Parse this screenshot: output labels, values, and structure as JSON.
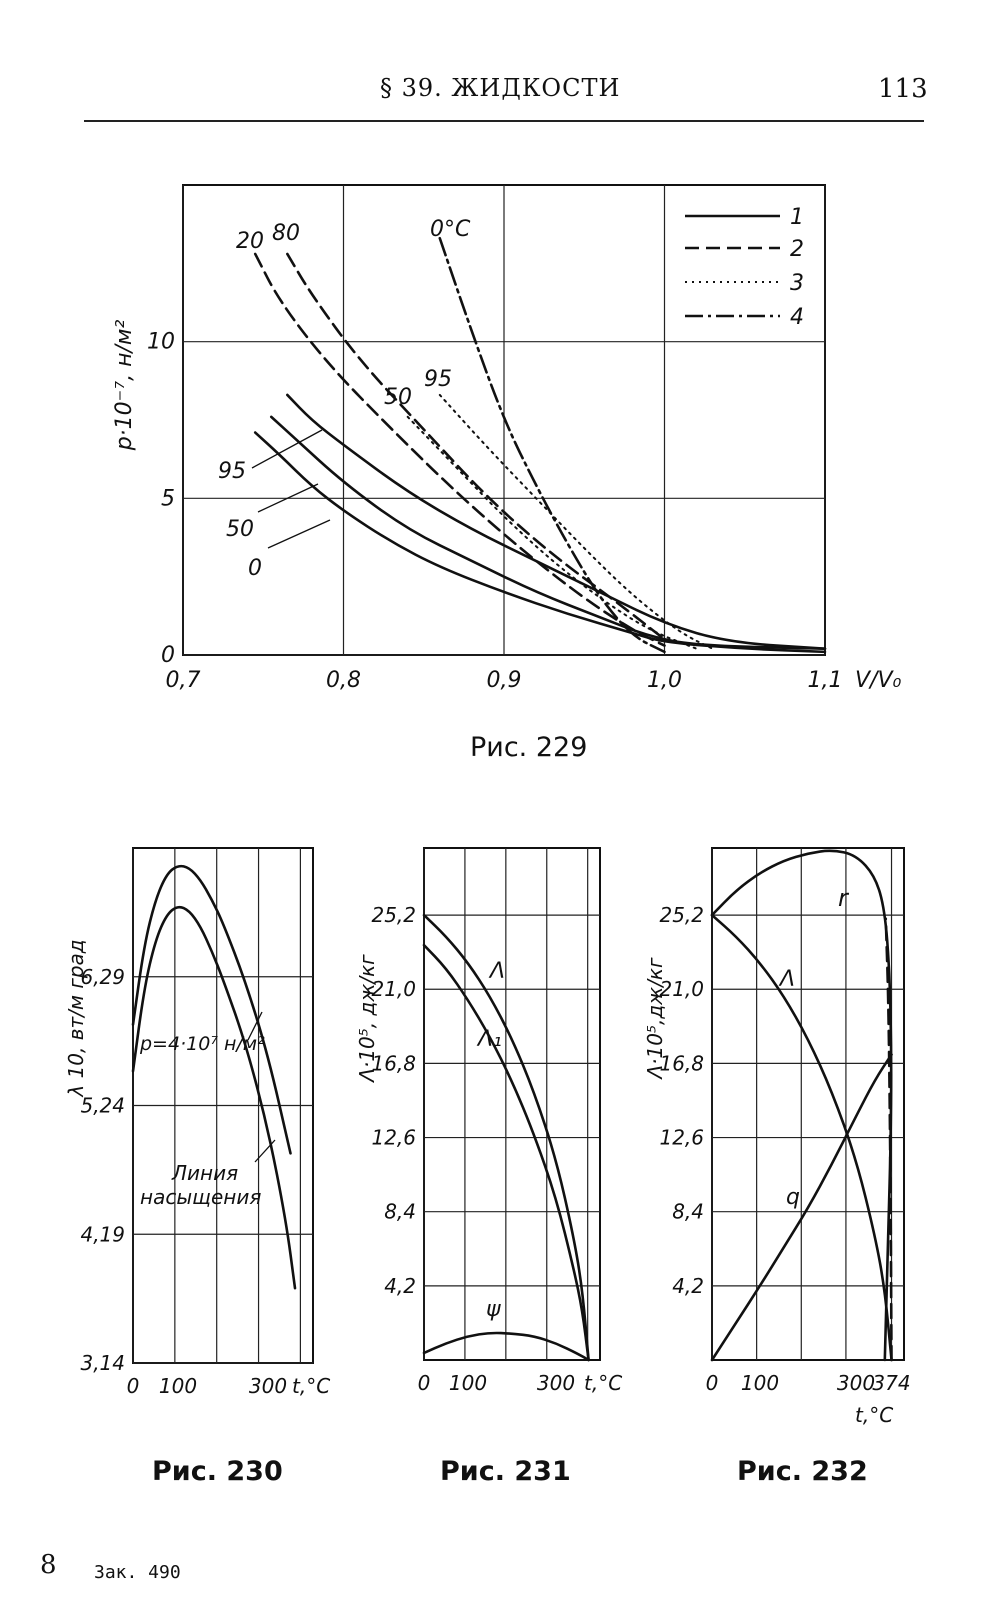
{
  "header": {
    "title": "§ 39. ЖИДКОСТИ",
    "page_number": "113"
  },
  "footer": {
    "sheet": "8",
    "order": "Зак. 490"
  },
  "chart_data": [
    {
      "id": "fig229",
      "caption": "Рис. 229",
      "type": "line",
      "xlabel": "V/V₀",
      "ylabel": "p·10⁻⁷, н/м²",
      "xlim": [
        0.7,
        1.1
      ],
      "ylim": [
        0,
        15
      ],
      "xticks": [
        "0,7",
        "0,8",
        "0,9",
        "1,0",
        "1,1"
      ],
      "yticks": [
        "0",
        "5",
        "10"
      ],
      "grid": true,
      "legend": {
        "position": "top-right",
        "entries": [
          "1",
          "2",
          "3",
          "4"
        ]
      },
      "series": [
        {
          "name": "0",
          "style": 1,
          "label": "0",
          "x": [
            0.745,
            0.76,
            0.78,
            0.8,
            0.83,
            0.86,
            0.9,
            0.94,
            0.98,
            1.0,
            1.05,
            1.1
          ],
          "y": [
            7.1,
            6.4,
            5.4,
            4.6,
            3.6,
            2.8,
            2.0,
            1.3,
            0.7,
            0.4,
            0.2,
            0.1
          ]
        },
        {
          "name": "50",
          "style": 1,
          "label": "50",
          "x": [
            0.755,
            0.77,
            0.8,
            0.84,
            0.88,
            0.92,
            0.96,
            0.99,
            1.02,
            1.1
          ],
          "y": [
            7.6,
            6.9,
            5.5,
            4.0,
            3.0,
            2.0,
            1.2,
            0.6,
            0.3,
            0.2
          ]
        },
        {
          "name": "95",
          "style": 1,
          "label": "95",
          "x": [
            0.765,
            0.78,
            0.8,
            0.84,
            0.88,
            0.92,
            0.96,
            1.0,
            1.04,
            1.1
          ],
          "y": [
            8.3,
            7.5,
            6.7,
            5.2,
            4.0,
            3.0,
            2.0,
            1.0,
            0.4,
            0.2
          ]
        },
        {
          "name": "20",
          "style": 2,
          "label": "20",
          "x": [
            0.745,
            0.76,
            0.79,
            0.83,
            0.87,
            0.91,
            0.95,
            0.98,
            1.0
          ],
          "y": [
            12.8,
            11.3,
            9.3,
            7.2,
            5.2,
            3.4,
            1.8,
            0.8,
            0.3
          ]
        },
        {
          "name": "80",
          "style": 2,
          "label": "80",
          "x": [
            0.765,
            0.78,
            0.81,
            0.85,
            0.89,
            0.93,
            0.97,
            1.0
          ],
          "y": [
            12.8,
            11.5,
            9.4,
            7.2,
            5.0,
            3.2,
            1.7,
            0.5
          ]
        },
        {
          "name": "50",
          "style": 3,
          "label": "50",
          "x": [
            0.84,
            0.87,
            0.9,
            0.93,
            0.96,
            0.99,
            1.02
          ],
          "y": [
            7.6,
            6.0,
            4.4,
            3.0,
            1.8,
            0.8,
            0.2
          ]
        },
        {
          "name": "95",
          "style": 3,
          "label": "95",
          "x": [
            0.86,
            0.89,
            0.92,
            0.95,
            0.98,
            1.01,
            1.03
          ],
          "y": [
            8.3,
            6.6,
            5.0,
            3.4,
            1.9,
            0.7,
            0.2
          ]
        },
        {
          "name": "0°C",
          "style": 4,
          "label": "0°C",
          "x": [
            0.86,
            0.88,
            0.9,
            0.92,
            0.94,
            0.96,
            0.98,
            1.0
          ],
          "y": [
            13.3,
            10.3,
            7.5,
            5.4,
            3.5,
            1.8,
            0.6,
            0.1
          ]
        }
      ]
    },
    {
      "id": "fig230",
      "caption": "Рис. 230",
      "type": "line",
      "xlabel": "t,°C",
      "ylabel": "λ 10, вт/м град",
      "xlim": [
        0,
        400
      ],
      "ylim": [
        3.14,
        7.34
      ],
      "xticks": [
        "0",
        "100",
        "300"
      ],
      "yticks": [
        "3,14",
        "4,19",
        "5,24",
        "6,29"
      ],
      "grid": true,
      "annotations": [
        "p=4·10⁷ н/м²",
        "Линия",
        "насыщения"
      ],
      "series": [
        {
          "name": "p=4·10⁷ н/м²",
          "x": [
            0,
            25,
            50,
            75,
            100,
            125,
            150,
            175,
            200,
            250,
            300,
            350
          ],
          "y": [
            5.9,
            6.55,
            6.92,
            7.13,
            7.2,
            7.18,
            7.08,
            6.92,
            6.73,
            6.25,
            5.65,
            4.85
          ]
        },
        {
          "name": "Линия насыщения",
          "x": [
            0,
            25,
            50,
            75,
            100,
            125,
            150,
            175,
            200,
            250,
            300,
            340,
            360
          ],
          "y": [
            5.52,
            6.2,
            6.59,
            6.8,
            6.87,
            6.83,
            6.7,
            6.5,
            6.27,
            5.75,
            5.05,
            4.3,
            3.75
          ]
        }
      ]
    },
    {
      "id": "fig231",
      "caption": "Рис. 231",
      "type": "line",
      "xlabel": "t,°C",
      "ylabel": "Λ·10⁵, дж/кг",
      "xlim": [
        0,
        400
      ],
      "ylim": [
        0,
        29
      ],
      "xticks": [
        "0",
        "100",
        "300"
      ],
      "yticks": [
        "4,2",
        "8,4",
        "12,6",
        "16,8",
        "21,0",
        "25,2"
      ],
      "grid": true,
      "series": [
        {
          "name": "Λ",
          "x": [
            0,
            50,
            100,
            150,
            200,
            250,
            300,
            340,
            360,
            374
          ],
          "y": [
            25.2,
            24.0,
            22.5,
            20.6,
            18.2,
            15.2,
            11.4,
            7.0,
            4.0,
            0
          ]
        },
        {
          "name": "Λ₁",
          "x": [
            0,
            50,
            100,
            150,
            200,
            250,
            300,
            340,
            360,
            374
          ],
          "y": [
            23.5,
            22.2,
            20.4,
            18.3,
            15.8,
            12.8,
            9.2,
            5.2,
            2.8,
            0
          ]
        },
        {
          "name": "ψ",
          "x": [
            0,
            50,
            100,
            150,
            200,
            250,
            300,
            350,
            374
          ],
          "y": [
            0.4,
            0.95,
            1.35,
            1.55,
            1.5,
            1.35,
            0.95,
            0.35,
            0
          ]
        }
      ]
    },
    {
      "id": "fig232",
      "caption": "Рис. 232",
      "type": "line",
      "xlabel": "t,°C",
      "ylabel": "Λ·10⁵,дж/кг",
      "xlim": [
        0,
        400
      ],
      "ylim": [
        0,
        29
      ],
      "xticks": [
        "0",
        "100",
        "300",
        "374"
      ],
      "yticks": [
        "4,2",
        "8,4",
        "12,6",
        "16,8",
        "21,0",
        "25,2"
      ],
      "grid": true,
      "series": [
        {
          "name": "r",
          "x": [
            0,
            50,
            100,
            150,
            200,
            250,
            300,
            340,
            360,
            370,
            374,
            372,
            368,
            364,
            360
          ],
          "y": [
            25.2,
            26.6,
            27.6,
            28.3,
            28.7,
            28.9,
            28.6,
            27.4,
            25.5,
            22.0,
            17.0,
            12.0,
            8.0,
            4.0,
            0
          ]
        },
        {
          "name": "Λ",
          "x": [
            0,
            50,
            100,
            150,
            200,
            250,
            300,
            340,
            360,
            374
          ],
          "y": [
            25.2,
            24.0,
            22.5,
            20.6,
            18.2,
            15.2,
            11.4,
            7.0,
            4.0,
            0
          ]
        },
        {
          "name": "q",
          "x": [
            0,
            50,
            100,
            150,
            200,
            250,
            300,
            340,
            374
          ],
          "y": [
            0,
            2.1,
            4.2,
            6.4,
            8.6,
            11.1,
            13.8,
            15.9,
            17.3
          ]
        },
        {
          "name": "374",
          "style": 2,
          "x": [
            374,
            372,
            368,
            362
          ],
          "y": [
            0,
            10,
            20,
            25
          ]
        }
      ]
    }
  ]
}
